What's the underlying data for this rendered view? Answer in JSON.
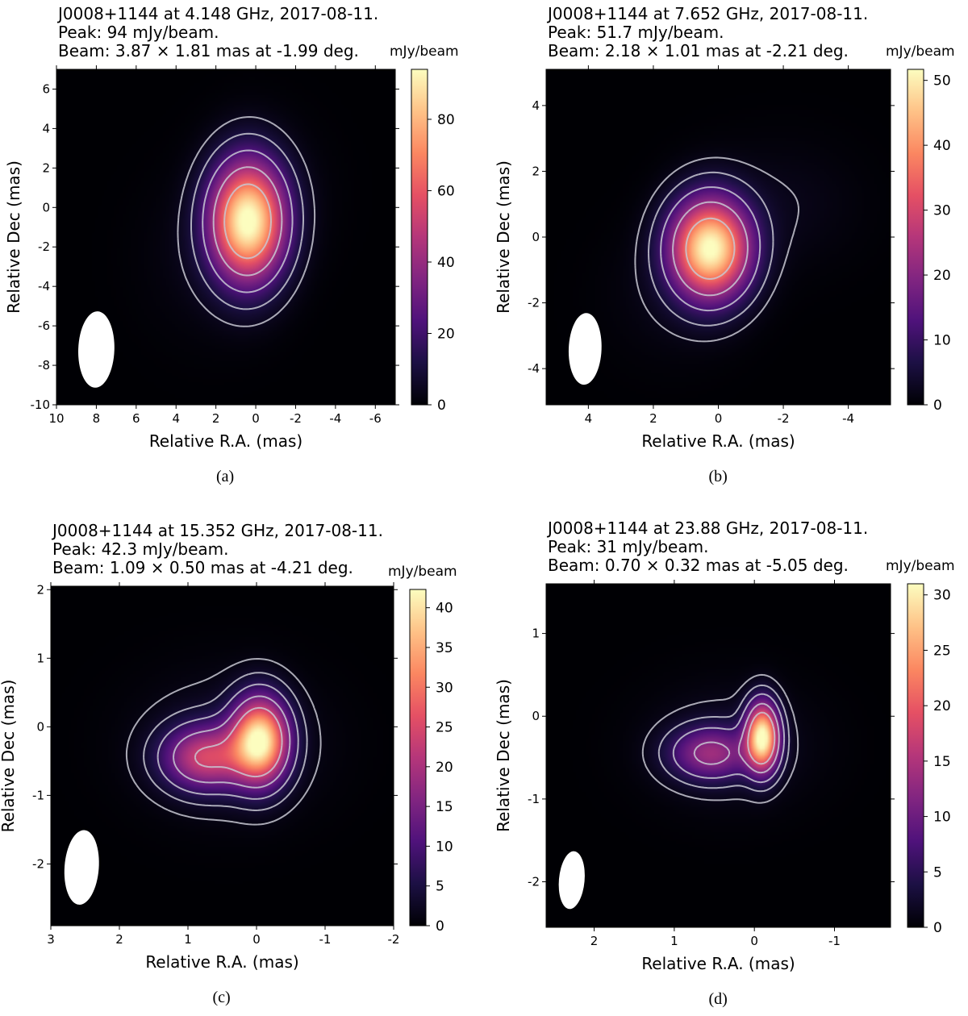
{
  "cbar_unit": "mJy/beam",
  "xlabel": "Relative R.A. (mas)",
  "ylabel": "Relative Dec (mas)",
  "colormap": [
    "#000004",
    "#1c1044",
    "#4f127b",
    "#812581",
    "#b5367a",
    "#e55064",
    "#fb8761",
    "#fec287",
    "#fcfdbf"
  ],
  "contour_color": "#c8c8d2",
  "beam_color": "#ffffff",
  "chart_data": [
    {
      "type": "heatmap",
      "title": [
        "J0008+1144 at 4.148 GHz, 2017-08-11.",
        "Peak: 94 mJy/beam.",
        "Beam: 3.87 × 1.81 mas at -1.99 deg."
      ],
      "caption": "(a)",
      "xlim": [
        10,
        -7
      ],
      "ylim": [
        -10,
        7
      ],
      "xticks": [
        10,
        8,
        6,
        4,
        2,
        0,
        -2,
        -4,
        -6
      ],
      "yticks": [
        -10,
        -8,
        -6,
        -4,
        -2,
        0,
        2,
        4,
        6
      ],
      "cbar_range": [
        0,
        94
      ],
      "cbar_ticks": [
        0,
        20,
        40,
        60,
        80
      ],
      "peak_mJy": 94,
      "beam": {
        "major_mas": 3.87,
        "minor_mas": 1.81,
        "pa_deg": -1.99,
        "x": 8,
        "y": -7.2
      },
      "components": [
        {
          "x": 0.4,
          "y": -0.7,
          "amp": 94,
          "sx": 1.3,
          "sy": 2.1
        },
        {
          "x": 2.5,
          "y": -2.5,
          "amp": 3,
          "sx": 2.2,
          "sy": 2.8
        },
        {
          "x": -0.8,
          "y": 0.8,
          "amp": 2.5,
          "sx": 2.0,
          "sy": 2.5
        }
      ],
      "contour_levels_frac": [
        0.05,
        0.12,
        0.25,
        0.45,
        0.7
      ]
    },
    {
      "type": "heatmap",
      "title": [
        "J0008+1144 at 7.652 GHz, 2017-08-11.",
        "Peak: 51.7 mJy/beam.",
        "Beam: 2.18 × 1.01 mas at -2.21 deg."
      ],
      "caption": "(b)",
      "xlim": [
        5.3,
        -5.3
      ],
      "ylim": [
        -5.1,
        5.1
      ],
      "xticks": [
        4,
        2,
        0,
        -2,
        -4
      ],
      "yticks": [
        -4,
        -2,
        0,
        2,
        4
      ],
      "cbar_range": [
        0,
        51.7
      ],
      "cbar_ticks": [
        0,
        10,
        20,
        30,
        40,
        50
      ],
      "peak_mJy": 51.7,
      "beam": {
        "major_mas": 2.18,
        "minor_mas": 1.01,
        "pa_deg": -2.21,
        "x": 4.1,
        "y": -3.4
      },
      "components": [
        {
          "x": 0.25,
          "y": -0.35,
          "amp": 51.7,
          "sx": 0.85,
          "sy": 1.05
        },
        {
          "x": -2.0,
          "y": 1.0,
          "amp": 2,
          "sx": 1.6,
          "sy": 1.3
        },
        {
          "x": 1.5,
          "y": -1.8,
          "amp": 1.5,
          "sx": 1.4,
          "sy": 1.4
        }
      ],
      "contour_levels_frac": [
        0.04,
        0.1,
        0.22,
        0.42,
        0.7
      ]
    },
    {
      "type": "heatmap",
      "title": [
        "J0008+1144 at 15.352 GHz, 2017-08-11.",
        "Peak: 42.3 mJy/beam.",
        "Beam: 1.09 × 0.50 mas at -4.21 deg."
      ],
      "caption": "(c)",
      "xlim": [
        3,
        -2
      ],
      "ylim": [
        -2.9,
        2.05
      ],
      "xticks": [
        3,
        2,
        1,
        0,
        -1,
        -2
      ],
      "yticks": [
        -2,
        -1,
        0,
        1,
        2
      ],
      "cbar_range": [
        0,
        42.3
      ],
      "cbar_ticks": [
        0,
        5,
        10,
        15,
        20,
        25,
        30,
        35,
        40
      ],
      "peak_mJy": 42.3,
      "beam": {
        "major_mas": 1.09,
        "minor_mas": 0.5,
        "pa_deg": -4.21,
        "x": 2.55,
        "y": -2.05
      },
      "components": [
        {
          "x": -0.05,
          "y": -0.2,
          "amp": 40,
          "sx": 0.28,
          "sy": 0.42
        },
        {
          "x": 0.75,
          "y": -0.45,
          "amp": 22,
          "sx": 0.42,
          "sy": 0.32
        },
        {
          "x": 0.4,
          "y": -0.25,
          "amp": 3,
          "sx": 0.9,
          "sy": 0.7
        }
      ],
      "contour_levels_frac": [
        0.03,
        0.08,
        0.17,
        0.33,
        0.55
      ]
    },
    {
      "type": "heatmap",
      "title": [
        "J0008+1144 at 23.88 GHz, 2017-08-11.",
        "Peak: 31 mJy/beam.",
        "Beam: 0.70 × 0.32 mas at -5.05 deg."
      ],
      "caption": "(d)",
      "xlim": [
        2.6,
        -1.7
      ],
      "ylim": [
        -2.55,
        1.6
      ],
      "xticks": [
        2,
        1,
        0,
        -1
      ],
      "yticks": [
        -2,
        -1,
        0,
        1
      ],
      "cbar_range": [
        0,
        31
      ],
      "cbar_ticks": [
        0,
        5,
        10,
        15,
        20,
        25,
        30
      ],
      "peak_mJy": 31,
      "beam": {
        "major_mas": 0.7,
        "minor_mas": 0.32,
        "pa_deg": -5.05,
        "x": 2.28,
        "y": -1.98
      },
      "components": [
        {
          "x": -0.1,
          "y": -0.25,
          "amp": 30,
          "sx": 0.14,
          "sy": 0.28
        },
        {
          "x": 0.55,
          "y": -0.45,
          "amp": 12,
          "sx": 0.35,
          "sy": 0.22
        },
        {
          "x": 0.3,
          "y": -0.35,
          "amp": 2,
          "sx": 0.7,
          "sy": 0.5
        }
      ],
      "contour_levels_frac": [
        0.04,
        0.1,
        0.2,
        0.38,
        0.6
      ]
    }
  ]
}
